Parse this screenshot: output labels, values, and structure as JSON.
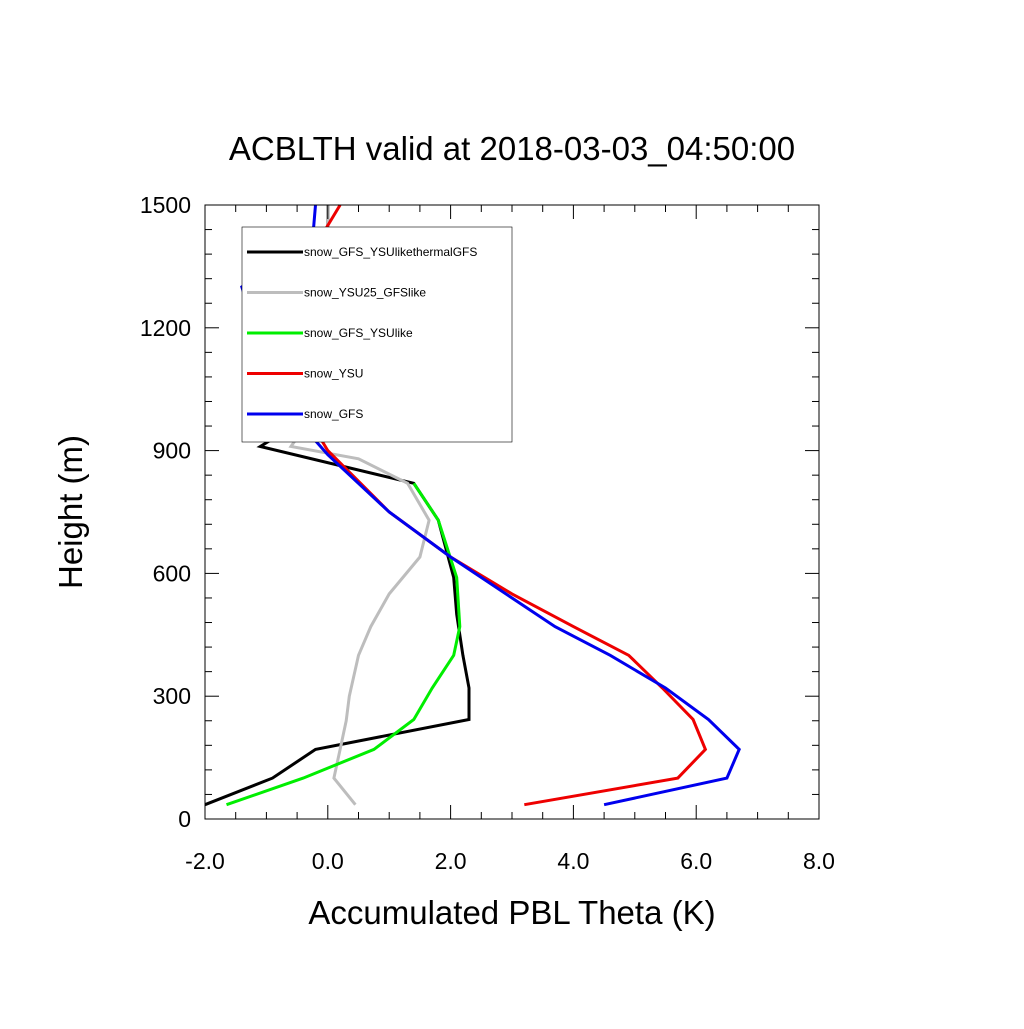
{
  "chart_data": {
    "type": "line",
    "title": "ACBLTH valid at 2018-03-03_04:50:00",
    "xlabel": "Accumulated PBL Theta (K)",
    "ylabel": "Height (m)",
    "xlim": [
      -2.0,
      8.0
    ],
    "ylim": [
      0,
      1500
    ],
    "x_major_ticks": [
      -2.0,
      0.0,
      2.0,
      4.0,
      6.0,
      8.0
    ],
    "x_tick_labels": [
      "-2.0",
      "0.0",
      "2.0",
      "4.0",
      "6.0",
      "8.0"
    ],
    "y_major_ticks": [
      0,
      300,
      600,
      900,
      1200,
      1500
    ],
    "y_tick_labels": [
      "0",
      "300",
      "600",
      "900",
      "1200",
      "1500"
    ],
    "grid": false,
    "legend_position": "top-left",
    "series": [
      {
        "name": "snow_GFS_YSUlikethermalGFS",
        "color": "#000000",
        "points": [
          [
            -2.0,
            35
          ],
          [
            -0.9,
            100
          ],
          [
            -0.2,
            170
          ],
          [
            2.3,
            243
          ],
          [
            2.3,
            320
          ],
          [
            2.2,
            400
          ],
          [
            2.1,
            500
          ],
          [
            2.05,
            590
          ],
          [
            1.8,
            730
          ],
          [
            1.4,
            820
          ],
          [
            -1.1,
            910
          ],
          [
            -0.4,
            975
          ],
          [
            -0.1,
            1010
          ],
          [
            -0.05,
            1100
          ],
          [
            0.0,
            1200
          ],
          [
            0.0,
            1300
          ],
          [
            0.0,
            1400
          ],
          [
            0.0,
            1500
          ]
        ]
      },
      {
        "name": "snow_YSU25_GFSlike",
        "color": "#bdbdbd",
        "points": [
          [
            0.45,
            35
          ],
          [
            0.1,
            100
          ],
          [
            0.2,
            170
          ],
          [
            0.3,
            240
          ],
          [
            0.35,
            300
          ],
          [
            0.5,
            400
          ],
          [
            0.7,
            470
          ],
          [
            1.0,
            550
          ],
          [
            1.5,
            640
          ],
          [
            1.65,
            730
          ],
          [
            1.3,
            820
          ],
          [
            0.5,
            880
          ],
          [
            -0.6,
            910
          ],
          [
            -0.3,
            975
          ],
          [
            -0.1,
            1010
          ],
          [
            -0.05,
            1100
          ],
          [
            0.0,
            1200
          ],
          [
            0.0,
            1300
          ],
          [
            0.0,
            1400
          ],
          [
            0.0,
            1500
          ]
        ]
      },
      {
        "name": "snow_GFS_YSUlike",
        "color": "#00ee00",
        "points": [
          [
            -1.65,
            35
          ],
          [
            -0.4,
            100
          ],
          [
            0.75,
            170
          ],
          [
            1.4,
            243
          ],
          [
            1.7,
            320
          ],
          [
            2.05,
            400
          ],
          [
            2.15,
            470
          ],
          [
            2.1,
            590
          ],
          [
            1.8,
            730
          ],
          [
            1.4,
            820
          ]
        ]
      },
      {
        "name": "snow_YSU",
        "color": "#ee0000",
        "points": [
          [
            3.2,
            35
          ],
          [
            5.7,
            100
          ],
          [
            6.15,
            170
          ],
          [
            5.95,
            243
          ],
          [
            5.45,
            320
          ],
          [
            4.9,
            400
          ],
          [
            4.0,
            470
          ],
          [
            3.0,
            550
          ],
          [
            2.0,
            640
          ],
          [
            1.0,
            750
          ],
          [
            0.0,
            900
          ],
          [
            -0.4,
            1000
          ],
          [
            -0.65,
            1100
          ],
          [
            -0.7,
            1200
          ],
          [
            -0.2,
            1400
          ],
          [
            0.2,
            1500
          ]
        ]
      },
      {
        "name": "snow_GFS",
        "color": "#0000ee",
        "points": [
          [
            4.5,
            35
          ],
          [
            6.5,
            100
          ],
          [
            6.7,
            170
          ],
          [
            6.2,
            243
          ],
          [
            5.5,
            320
          ],
          [
            4.6,
            400
          ],
          [
            3.7,
            470
          ],
          [
            2.9,
            550
          ],
          [
            2.0,
            640
          ],
          [
            1.0,
            750
          ],
          [
            0.0,
            890
          ],
          [
            -0.5,
            975
          ],
          [
            -0.9,
            1070
          ],
          [
            -1.4,
            1300
          ],
          [
            -0.25,
            1410
          ],
          [
            -0.2,
            1500
          ]
        ]
      }
    ]
  }
}
